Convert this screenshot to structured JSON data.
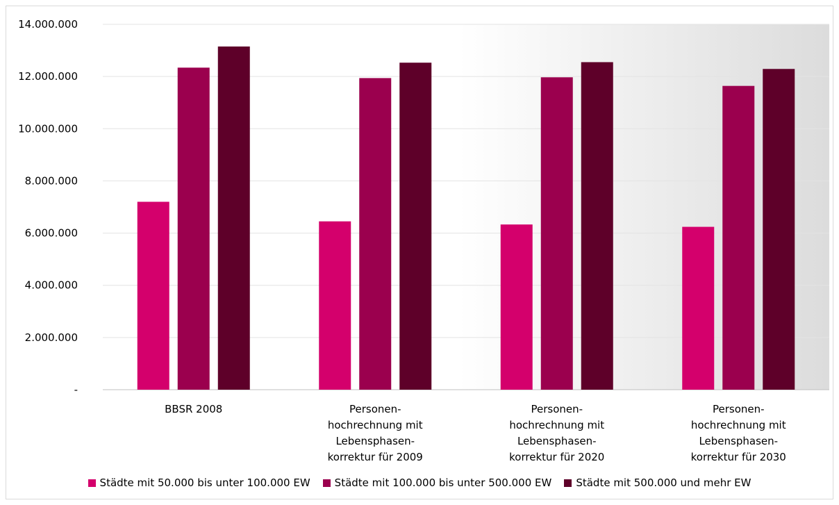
{
  "chart_data": {
    "type": "bar",
    "categories": [
      [
        "BBSR 2008"
      ],
      [
        "Personen-",
        "hochrechnung mit",
        "Lebensphasen-",
        "korrektur für 2009"
      ],
      [
        "Personen-",
        "hochrechnung mit",
        "Lebensphasen-",
        "korrektur für 2020"
      ],
      [
        "Personen-",
        "hochrechnung mit",
        "Lebensphasen-",
        "korrektur für 2030"
      ]
    ],
    "series": [
      {
        "name": "Städte mit 50.000 bis unter 100.000 EW",
        "color": "#d4006c",
        "values": [
          7200000,
          6450000,
          6330000,
          6240000
        ]
      },
      {
        "name": "Städte mit 100.000 bis unter 500.000 EW",
        "color": "#9b004e",
        "values": [
          12340000,
          11940000,
          11970000,
          11640000
        ]
      },
      {
        "name": "Städte mit 500.000 und mehr EW",
        "color": "#5e0029",
        "values": [
          13150000,
          12530000,
          12550000,
          12290000
        ]
      }
    ],
    "y_ticks": [
      {
        "value": 0,
        "label": "-"
      },
      {
        "value": 2000000,
        "label": "2.000.000"
      },
      {
        "value": 4000000,
        "label": "4.000.000"
      },
      {
        "value": 6000000,
        "label": "6.000.000"
      },
      {
        "value": 8000000,
        "label": "8.000.000"
      },
      {
        "value": 10000000,
        "label": "10.000.000"
      },
      {
        "value": 12000000,
        "label": "12.000.000"
      },
      {
        "value": 14000000,
        "label": "14.000.000"
      }
    ],
    "ylim": [
      0,
      14000000
    ],
    "grid": true,
    "legend_position": "bottom",
    "title": "",
    "xlabel": "",
    "ylabel": ""
  }
}
